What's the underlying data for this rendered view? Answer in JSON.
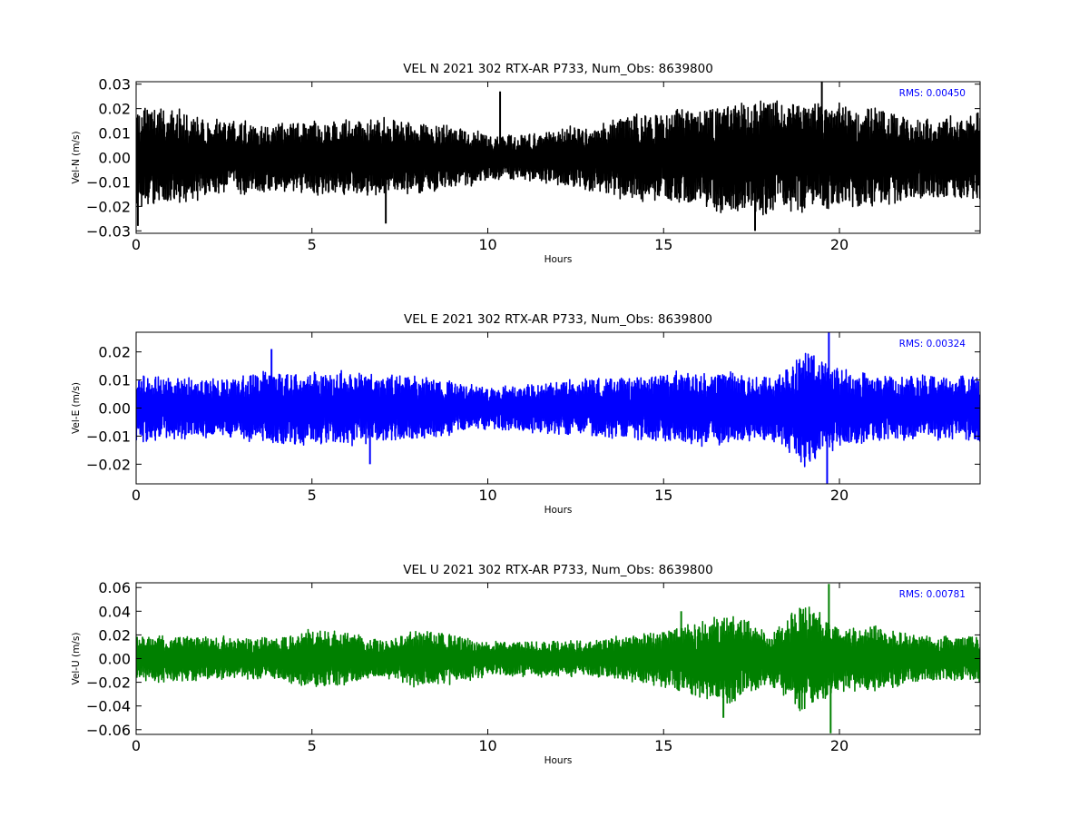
{
  "chart_data": [
    {
      "type": "line",
      "title": "VEL N 2021 302 RTX-AR  P733, Num_Obs: 8639800",
      "xlabel": "Hours",
      "ylabel": "Vel-N (m/s)",
      "xlim": [
        0,
        24
      ],
      "ylim": [
        -0.031,
        0.031
      ],
      "x_ticks": [
        0,
        5,
        10,
        15,
        20
      ],
      "x_tick_labels": [
        "0",
        "5",
        "10",
        "15",
        "20"
      ],
      "y_ticks": [
        -0.03,
        -0.02,
        -0.01,
        0.0,
        0.01,
        0.02,
        0.03
      ],
      "y_tick_labels": [
        "−0.03",
        "−0.02",
        "−0.01",
        "0.00",
        "0.01",
        "0.02",
        "0.03"
      ],
      "grid": false,
      "annotation": "RMS:  0.00450",
      "series": [
        {
          "color": "#000000",
          "envelope_hours": [
            0,
            1,
            2,
            3,
            4,
            5,
            6,
            7,
            8,
            9,
            10,
            11,
            12,
            13,
            14,
            15,
            16,
            17,
            18,
            19,
            20,
            21,
            22,
            23,
            24
          ],
          "envelope_amplitude": [
            0.022,
            0.021,
            0.017,
            0.016,
            0.015,
            0.016,
            0.017,
            0.017,
            0.016,
            0.014,
            0.01,
            0.01,
            0.012,
            0.014,
            0.019,
            0.02,
            0.021,
            0.024,
            0.026,
            0.024,
            0.023,
            0.021,
            0.019,
            0.018,
            0.019
          ],
          "x": [
            0.05,
            7.1,
            10.35,
            17.6,
            19.5
          ],
          "y": [
            -0.028,
            -0.027,
            0.027,
            -0.03,
            0.031
          ]
        }
      ]
    },
    {
      "type": "line",
      "title": "VEL E 2021 302 RTX-AR  P733, Num_Obs: 8639800",
      "xlabel": "Hours",
      "ylabel": "Vel-E (m/s)",
      "xlim": [
        0,
        24
      ],
      "ylim": [
        -0.027,
        0.027
      ],
      "x_ticks": [
        0,
        5,
        10,
        15,
        20
      ],
      "x_tick_labels": [
        "0",
        "5",
        "10",
        "15",
        "20"
      ],
      "y_ticks": [
        -0.02,
        -0.01,
        0.0,
        0.01,
        0.02
      ],
      "y_tick_labels": [
        "−0.02",
        "−0.01",
        "0.00",
        "0.01",
        "0.02"
      ],
      "grid": false,
      "annotation": "RMS:  0.00324",
      "series": [
        {
          "color": "#0000ff",
          "envelope_hours": [
            0,
            1,
            2,
            3,
            4,
            5,
            6,
            7,
            8,
            9,
            10,
            11,
            12,
            13,
            14,
            15,
            16,
            17,
            18,
            19,
            20,
            21,
            22,
            23,
            24
          ],
          "envelope_amplitude": [
            0.013,
            0.012,
            0.011,
            0.012,
            0.015,
            0.013,
            0.014,
            0.013,
            0.012,
            0.01,
            0.008,
            0.009,
            0.01,
            0.011,
            0.012,
            0.013,
            0.014,
            0.013,
            0.012,
            0.022,
            0.015,
            0.013,
            0.012,
            0.012,
            0.013
          ],
          "x": [
            3.85,
            6.65,
            19.7,
            19.65
          ],
          "y": [
            0.021,
            -0.02,
            0.027,
            -0.027
          ]
        }
      ]
    },
    {
      "type": "line",
      "title": "VEL U 2021 302 RTX-AR  P733, Num_Obs: 8639800",
      "xlabel": "Hours",
      "ylabel": "Vel-U (m/s)",
      "xlim": [
        0,
        24
      ],
      "ylim": [
        -0.064,
        0.064
      ],
      "x_ticks": [
        0,
        5,
        10,
        15,
        20
      ],
      "x_tick_labels": [
        "0",
        "5",
        "10",
        "15",
        "20"
      ],
      "y_ticks": [
        -0.06,
        -0.04,
        -0.02,
        0.0,
        0.02,
        0.04,
        0.06
      ],
      "y_tick_labels": [
        "−0.06",
        "−0.04",
        "−0.02",
        "0.00",
        "0.02",
        "0.04",
        "0.06"
      ],
      "grid": false,
      "annotation": "RMS:  0.00781",
      "series": [
        {
          "color": "#008000",
          "envelope_hours": [
            0,
            1,
            2,
            3,
            4,
            5,
            6,
            7,
            8,
            9,
            10,
            11,
            12,
            13,
            14,
            15,
            16,
            17,
            18,
            19,
            20,
            21,
            22,
            23,
            24
          ],
          "envelope_amplitude": [
            0.02,
            0.021,
            0.02,
            0.019,
            0.018,
            0.027,
            0.024,
            0.016,
            0.027,
            0.022,
            0.015,
            0.016,
            0.016,
            0.017,
            0.02,
            0.026,
            0.035,
            0.04,
            0.026,
            0.05,
            0.03,
            0.03,
            0.022,
            0.02,
            0.021
          ],
          "x": [
            15.5,
            16.7,
            19.7,
            19.75
          ],
          "y": [
            0.04,
            -0.05,
            0.063,
            -0.063
          ]
        }
      ]
    }
  ]
}
